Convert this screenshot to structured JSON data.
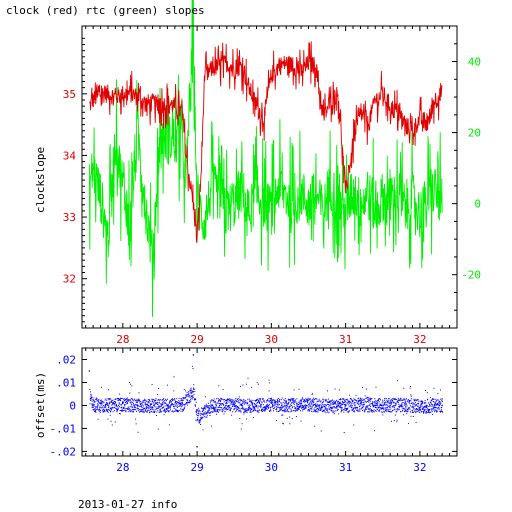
{
  "page": {
    "title": "clock (red) rtc (green) slopes",
    "footer": "2013-01-27 info"
  },
  "colors": {
    "clock": "#e00000",
    "rtc": "#00ee00",
    "offset": "#0000ff",
    "axis": "#000000"
  },
  "chart_data": [
    {
      "type": "line",
      "title": "clock (red) rtc (green) slopes",
      "ylabel": "clockslope",
      "y2label": "",
      "xlim": [
        27.45,
        32.5
      ],
      "ylim": [
        31.2,
        36.1
      ],
      "y2lim": [
        -35,
        50
      ],
      "x_ticks": [
        28,
        29,
        30,
        31,
        32
      ],
      "y_ticks": [
        32,
        33,
        34,
        35
      ],
      "y2_ticks": [
        -20,
        0,
        20,
        40
      ],
      "x_tick_color": "red",
      "series": [
        {
          "name": "clock",
          "axis": "left",
          "color": "#e00000",
          "x": [
            27.55,
            27.6,
            27.7,
            27.8,
            27.9,
            28.0,
            28.1,
            28.2,
            28.3,
            28.4,
            28.5,
            28.6,
            28.7,
            28.8,
            28.85,
            28.9,
            28.95,
            29.0,
            29.05,
            29.1,
            29.2,
            29.3,
            29.4,
            29.5,
            29.6,
            29.7,
            29.8,
            29.9,
            30.0,
            30.1,
            30.2,
            30.3,
            30.4,
            30.5,
            30.6,
            30.7,
            30.8,
            30.9,
            31.0,
            31.1,
            31.2,
            31.3,
            31.4,
            31.5,
            31.6,
            31.7,
            31.8,
            31.9,
            32.0,
            32.1,
            32.2,
            32.3
          ],
          "y": [
            34.8,
            34.9,
            35.0,
            35.0,
            34.95,
            35.0,
            35.0,
            34.95,
            34.85,
            34.85,
            34.8,
            34.85,
            34.8,
            34.7,
            34.0,
            33.6,
            33.2,
            32.6,
            33.6,
            35.3,
            35.4,
            35.45,
            35.5,
            35.4,
            35.45,
            35.1,
            34.8,
            34.6,
            35.3,
            35.45,
            35.5,
            35.45,
            35.35,
            35.5,
            35.45,
            34.6,
            34.9,
            35.0,
            33.4,
            34.2,
            34.7,
            34.5,
            34.9,
            35.0,
            34.8,
            34.7,
            34.5,
            34.4,
            34.6,
            34.5,
            34.9,
            35.0
          ]
        },
        {
          "name": "rtc",
          "axis": "right",
          "color": "#00ee00",
          "x": [
            27.55,
            27.6,
            27.7,
            27.8,
            27.9,
            28.0,
            28.1,
            28.2,
            28.3,
            28.4,
            28.5,
            28.6,
            28.7,
            28.8,
            28.85,
            28.9,
            28.95,
            29.0,
            29.1,
            29.2,
            29.3,
            29.4,
            29.5,
            29.6,
            29.7,
            29.8,
            29.9,
            30.0,
            30.1,
            30.2,
            30.3,
            30.4,
            30.5,
            30.6,
            30.7,
            30.8,
            30.9,
            31.0,
            31.1,
            31.2,
            31.3,
            31.4,
            31.5,
            31.6,
            31.7,
            31.8,
            31.9,
            32.0,
            32.1,
            32.2,
            32.3
          ],
          "y": [
            5,
            10,
            2,
            -10,
            18,
            5,
            -5,
            20,
            0,
            -15,
            20,
            18,
            18,
            17,
            5,
            30,
            45,
            0,
            -5,
            5,
            2,
            -2,
            0,
            4,
            -3,
            3,
            0,
            -2,
            5,
            2,
            -1,
            3,
            0,
            2,
            -2,
            5,
            0,
            -3,
            4,
            0,
            3,
            -2,
            2,
            0,
            3,
            -1,
            2,
            -3,
            1,
            4,
            0
          ]
        }
      ]
    },
    {
      "type": "scatter",
      "title": "",
      "ylabel": "offset(ms)",
      "xlim": [
        27.45,
        32.5
      ],
      "ylim": [
        -0.022,
        0.025
      ],
      "x_ticks": [
        28,
        29,
        30,
        31,
        32
      ],
      "y_ticks": [
        -0.02,
        -0.01,
        0,
        0.01,
        0.02
      ],
      "series": [
        {
          "name": "offset",
          "color": "#0000ff",
          "x": [
            27.55,
            27.6,
            27.8,
            28.0,
            28.2,
            28.4,
            28.6,
            28.8,
            28.95,
            29.0,
            29.2,
            29.4,
            29.6,
            29.8,
            30.0,
            30.2,
            30.4,
            30.6,
            30.8,
            31.0,
            31.2,
            31.4,
            31.6,
            31.8,
            32.0,
            32.2,
            32.3
          ],
          "y": [
            0.015,
            0.0,
            0.0,
            0.001,
            0.0,
            -0.001,
            0.0,
            0.001,
            0.022,
            -0.018,
            0.0,
            0.001,
            0.0,
            0.0,
            0.001,
            0.0,
            0.002,
            0.0,
            -0.001,
            0.0,
            0.001,
            0.0,
            0.0,
            0.001,
            -0.002,
            0.0,
            0.0
          ]
        }
      ]
    }
  ]
}
